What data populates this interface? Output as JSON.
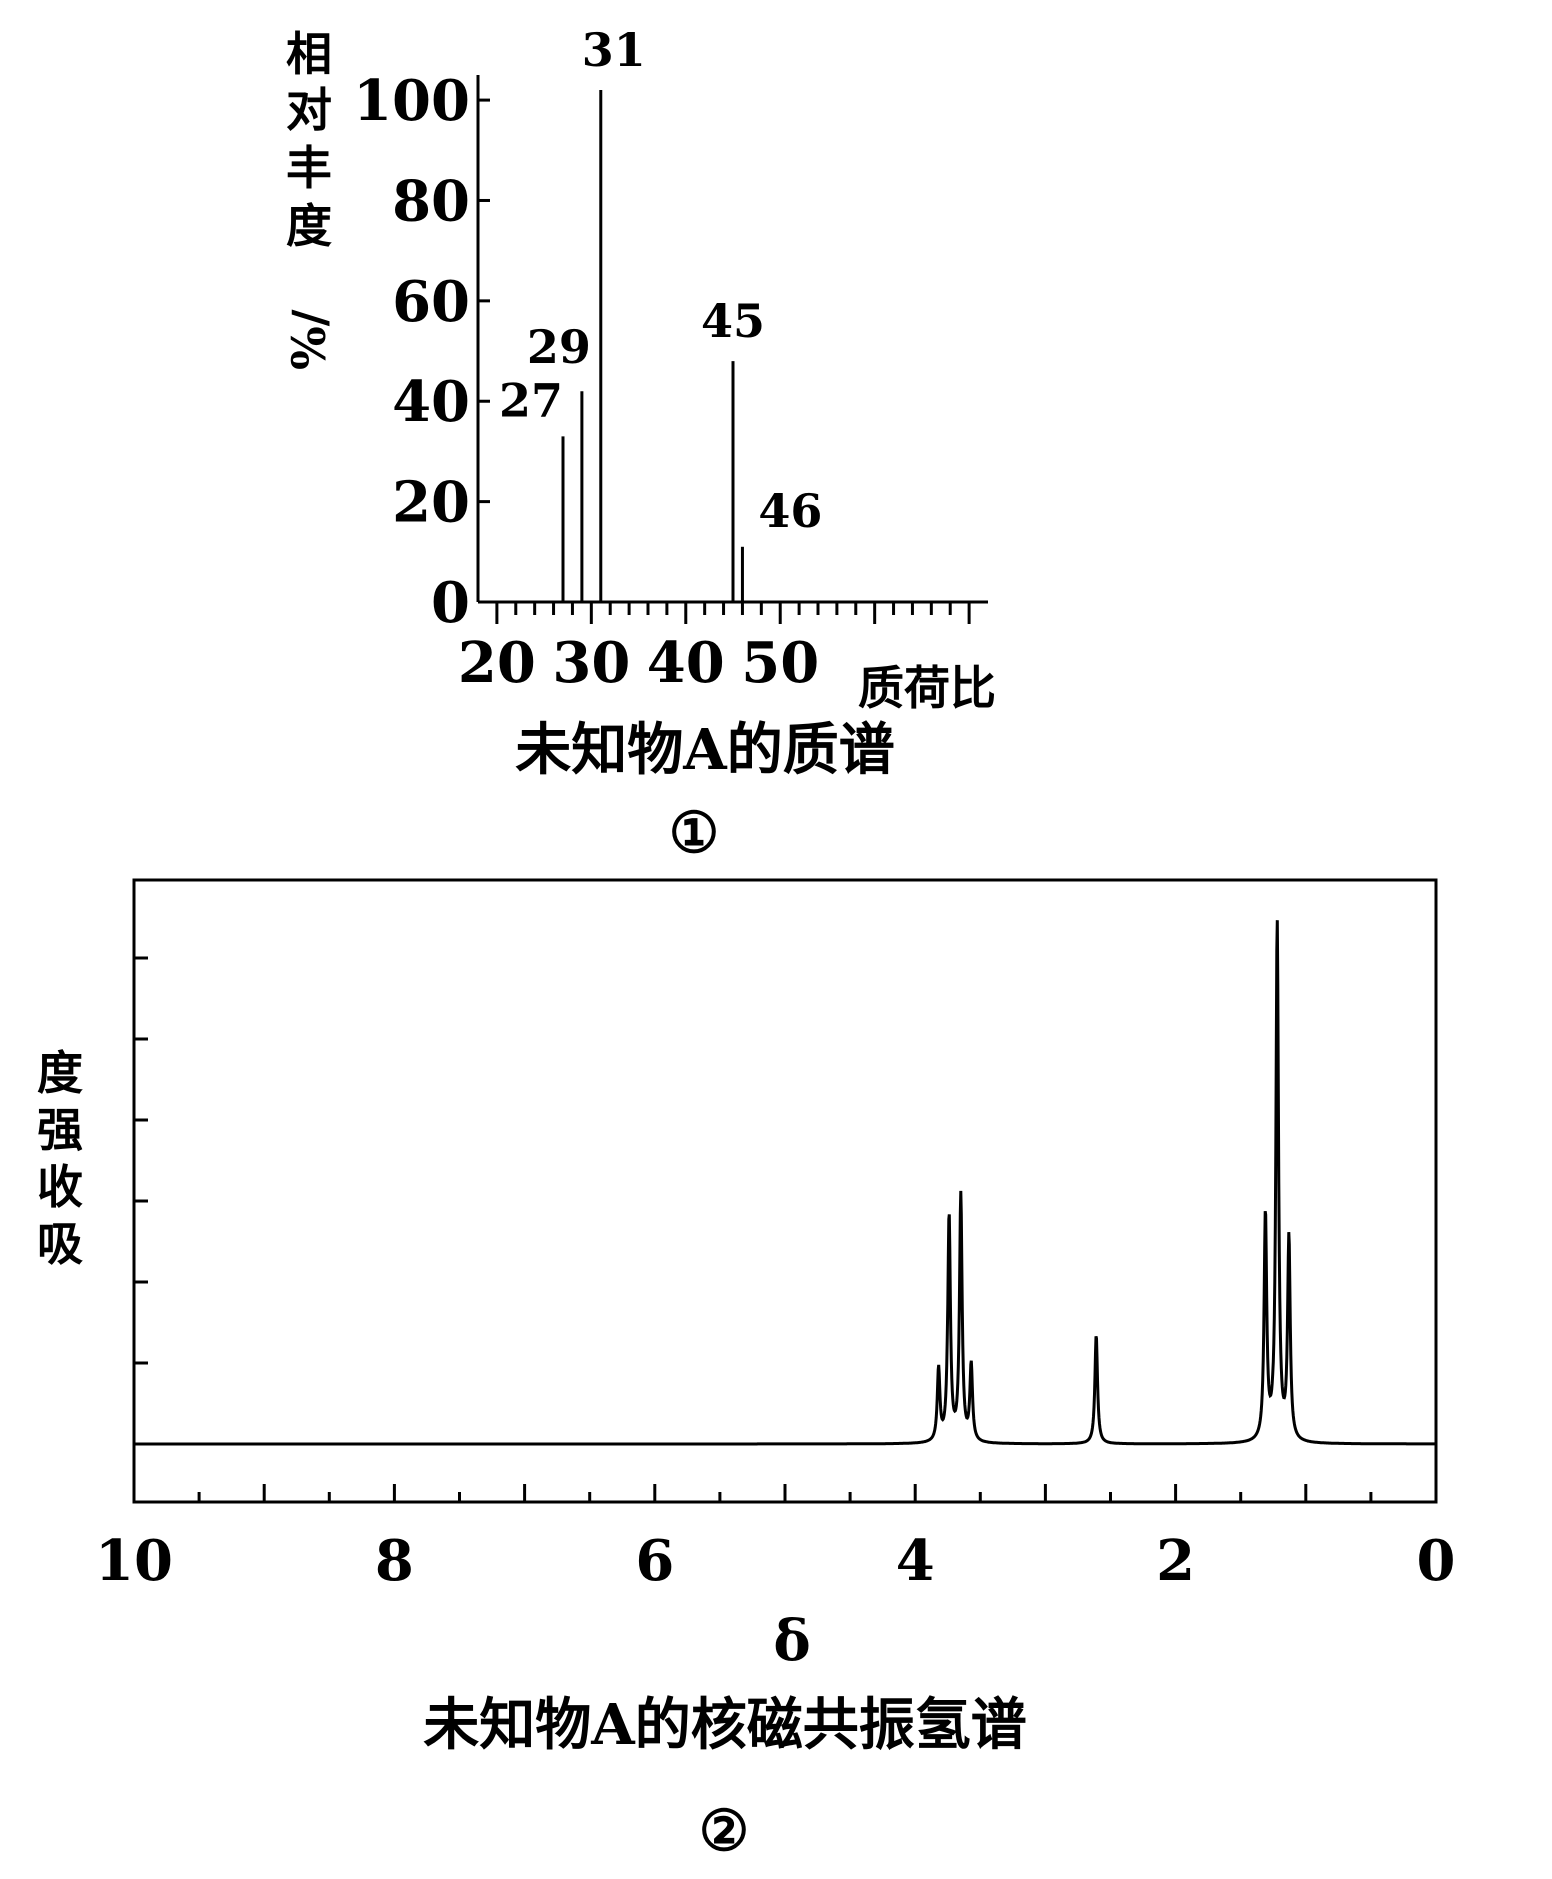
{
  "chart_data": [
    {
      "type": "bar",
      "title": "未知物A的质谱",
      "label": "①",
      "xlabel": "质荷比",
      "ylabel": "相对丰度/%",
      "xlim": [
        18,
        72
      ],
      "ylim": [
        0,
        105
      ],
      "x_ticks": [
        20,
        30,
        40,
        50
      ],
      "y_ticks": [
        0,
        20,
        40,
        60,
        80,
        100
      ],
      "peaks": [
        {
          "x": 27,
          "y": 33,
          "label": "27"
        },
        {
          "x": 29,
          "y": 42,
          "label": "29"
        },
        {
          "x": 31,
          "y": 102,
          "label": "31"
        },
        {
          "x": 45,
          "y": 48,
          "label": "45"
        },
        {
          "x": 46,
          "y": 11,
          "label": "46"
        }
      ]
    },
    {
      "type": "line",
      "title": "未知物A的核磁共振氢谱",
      "label": "②",
      "xlabel": "δ",
      "ylabel": "吸收强度",
      "xlim": [
        10,
        0
      ],
      "ylim": [
        0,
        7
      ],
      "x_ticks": [
        10,
        8,
        6,
        4,
        2,
        0
      ],
      "grid": false,
      "signals": [
        {
          "shift": 3.69,
          "multiplicity": "quartet",
          "lines": [
            {
              "x": 3.82,
              "y": 0.9
            },
            {
              "x": 3.74,
              "y": 2.8
            },
            {
              "x": 3.65,
              "y": 3.05
            },
            {
              "x": 3.57,
              "y": 0.95
            }
          ]
        },
        {
          "shift": 2.61,
          "multiplicity": "singlet",
          "lines": [
            {
              "x": 2.61,
              "y": 1.35
            }
          ]
        },
        {
          "shift": 1.22,
          "multiplicity": "triplet",
          "lines": [
            {
              "x": 1.31,
              "y": 2.8
            },
            {
              "x": 1.22,
              "y": 6.4
            },
            {
              "x": 1.13,
              "y": 2.5
            }
          ]
        }
      ]
    }
  ]
}
